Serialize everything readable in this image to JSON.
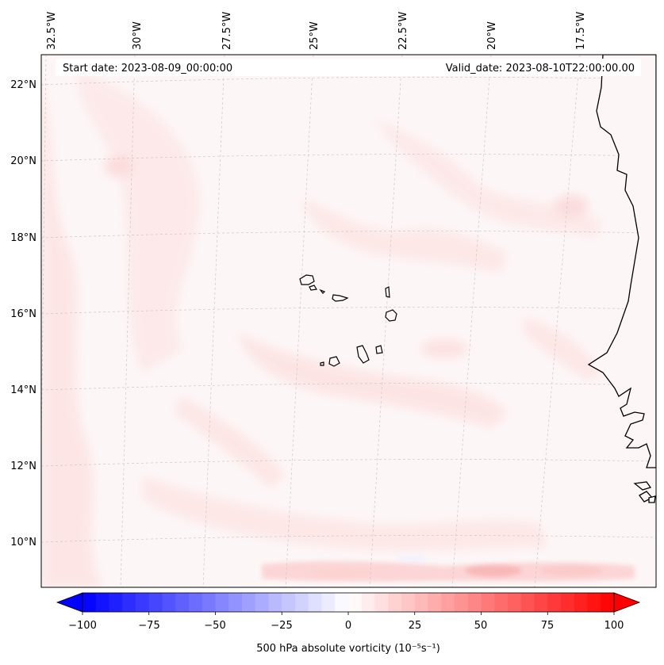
{
  "map": {
    "start_date": "Start date: 2023-08-09_00:00:00",
    "valid_date": "Valid_date: 2023-08-10T22:00:00.00",
    "lon_labels": [
      "32.5°W",
      "30°W",
      "27.5°W",
      "25°W",
      "22.5°W",
      "20°W",
      "17.5°W"
    ],
    "lat_labels": [
      "22°N",
      "20°N",
      "18°N",
      "16°N",
      "14°N",
      "12°N",
      "10°N"
    ],
    "ocean_color": "#fdf5f5",
    "land_outline_color": "#000000"
  },
  "colorbar": {
    "label": "500 hPa absolute vorticity (10⁻⁵s⁻¹)",
    "ticks": [
      "−100",
      "−75",
      "−50",
      "−25",
      "0",
      "25",
      "50",
      "75",
      "100"
    ],
    "range": [
      -100,
      100
    ],
    "levels": 40,
    "colormap": "bwr"
  }
}
